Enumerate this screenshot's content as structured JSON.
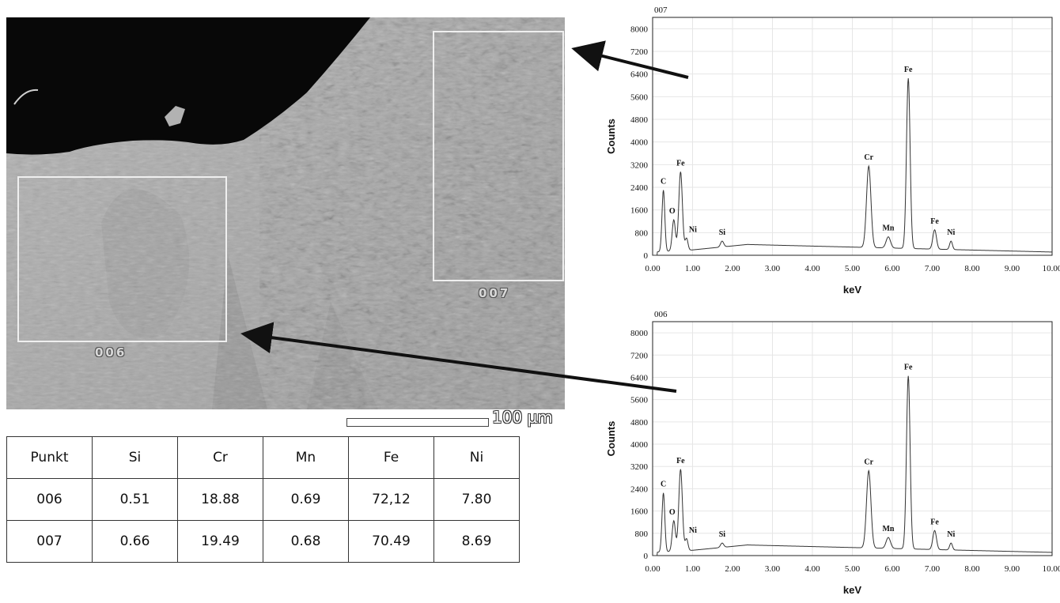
{
  "micrograph": {
    "region_labels": [
      "006",
      "007"
    ],
    "scale_bar": "100 µm"
  },
  "table": {
    "headers": [
      "Punkt",
      "Si",
      "Cr",
      "Mn",
      "Fe",
      "Ni"
    ],
    "rows": [
      [
        "006",
        "0.51",
        "18.88",
        "0.69",
        "72,12",
        "7.80"
      ],
      [
        "007",
        "0.66",
        "19.49",
        "0.68",
        "70.49",
        "8.69"
      ]
    ]
  },
  "chart_data": [
    {
      "type": "line",
      "title": "007",
      "xlabel": "keV",
      "ylabel": "Counts",
      "xlim": [
        0,
        10
      ],
      "ylim": [
        0,
        8400
      ],
      "xticks": [
        "0.00",
        "1.00",
        "2.00",
        "3.00",
        "4.00",
        "5.00",
        "6.00",
        "7.00",
        "8.00",
        "9.00",
        "10.00"
      ],
      "yticks": [
        "0",
        "800",
        "1600",
        "2400",
        "3200",
        "4000",
        "4800",
        "5600",
        "6400",
        "7200",
        "8000"
      ],
      "grid": true,
      "peaks": [
        {
          "label": "C",
          "x": 0.27,
          "y": 2300
        },
        {
          "label": "O",
          "x": 0.53,
          "y": 1250
        },
        {
          "label": "Fe",
          "x": 0.7,
          "y": 2950
        },
        {
          "label": "Ni",
          "x": 0.85,
          "y": 600
        },
        {
          "label": "Si",
          "x": 1.74,
          "y": 500
        },
        {
          "label": "Cr",
          "x": 5.41,
          "y": 3150
        },
        {
          "label": "Mn",
          "x": 5.9,
          "y": 650
        },
        {
          "label": "Fe",
          "x": 6.4,
          "y": 6250
        },
        {
          "label": "Fe",
          "x": 7.06,
          "y": 900
        },
        {
          "label": "Ni",
          "x": 7.47,
          "y": 500
        }
      ]
    },
    {
      "type": "line",
      "title": "006",
      "xlabel": "keV",
      "ylabel": "Counts",
      "xlim": [
        0,
        10
      ],
      "ylim": [
        0,
        8400
      ],
      "xticks": [
        "0.00",
        "1.00",
        "2.00",
        "3.00",
        "4.00",
        "5.00",
        "6.00",
        "7.00",
        "8.00",
        "9.00",
        "10.00"
      ],
      "yticks": [
        "0",
        "800",
        "1600",
        "2400",
        "3200",
        "4000",
        "4800",
        "5600",
        "6400",
        "7200",
        "8000"
      ],
      "grid": true,
      "peaks": [
        {
          "label": "C",
          "x": 0.27,
          "y": 2250
        },
        {
          "label": "O",
          "x": 0.53,
          "y": 1250
        },
        {
          "label": "Fe",
          "x": 0.7,
          "y": 3100
        },
        {
          "label": "Ni",
          "x": 0.85,
          "y": 600
        },
        {
          "label": "Si",
          "x": 1.74,
          "y": 450
        },
        {
          "label": "Cr",
          "x": 5.41,
          "y": 3050
        },
        {
          "label": "Mn",
          "x": 5.9,
          "y": 650
        },
        {
          "label": "Fe",
          "x": 6.4,
          "y": 6450
        },
        {
          "label": "Fe",
          "x": 7.06,
          "y": 900
        },
        {
          "label": "Ni",
          "x": 7.47,
          "y": 450
        }
      ]
    }
  ]
}
